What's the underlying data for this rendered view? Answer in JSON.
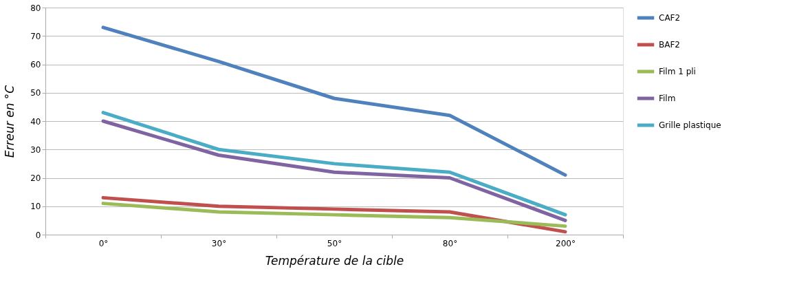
{
  "chart_data": {
    "type": "line",
    "xlabel": "Température de la cible",
    "ylabel": "Erreur en °C",
    "categories": [
      "0°",
      "30°",
      "50°",
      "80°",
      "200°"
    ],
    "ylim": [
      0,
      80
    ],
    "yticks": [
      0,
      10,
      20,
      30,
      40,
      50,
      60,
      70,
      80
    ],
    "grid": "y",
    "legend": "right",
    "marker": "none",
    "line_style": "solid",
    "series": [
      {
        "name": "CAF2",
        "color": "#4f81bd",
        "values": [
          73,
          61,
          48,
          42,
          21
        ]
      },
      {
        "name": "BAF2",
        "color": "#c0504d",
        "values": [
          13,
          10,
          9,
          8,
          1
        ]
      },
      {
        "name": "Film 1 pli",
        "color": "#9bbb59",
        "values": [
          11,
          8,
          7,
          6,
          3
        ]
      },
      {
        "name": "Film",
        "color": "#8064a2",
        "values": [
          40,
          28,
          22,
          20,
          5
        ]
      },
      {
        "name": "Grille plastique",
        "color": "#4bacc6",
        "values": [
          43,
          30,
          25,
          22,
          7
        ]
      }
    ]
  }
}
